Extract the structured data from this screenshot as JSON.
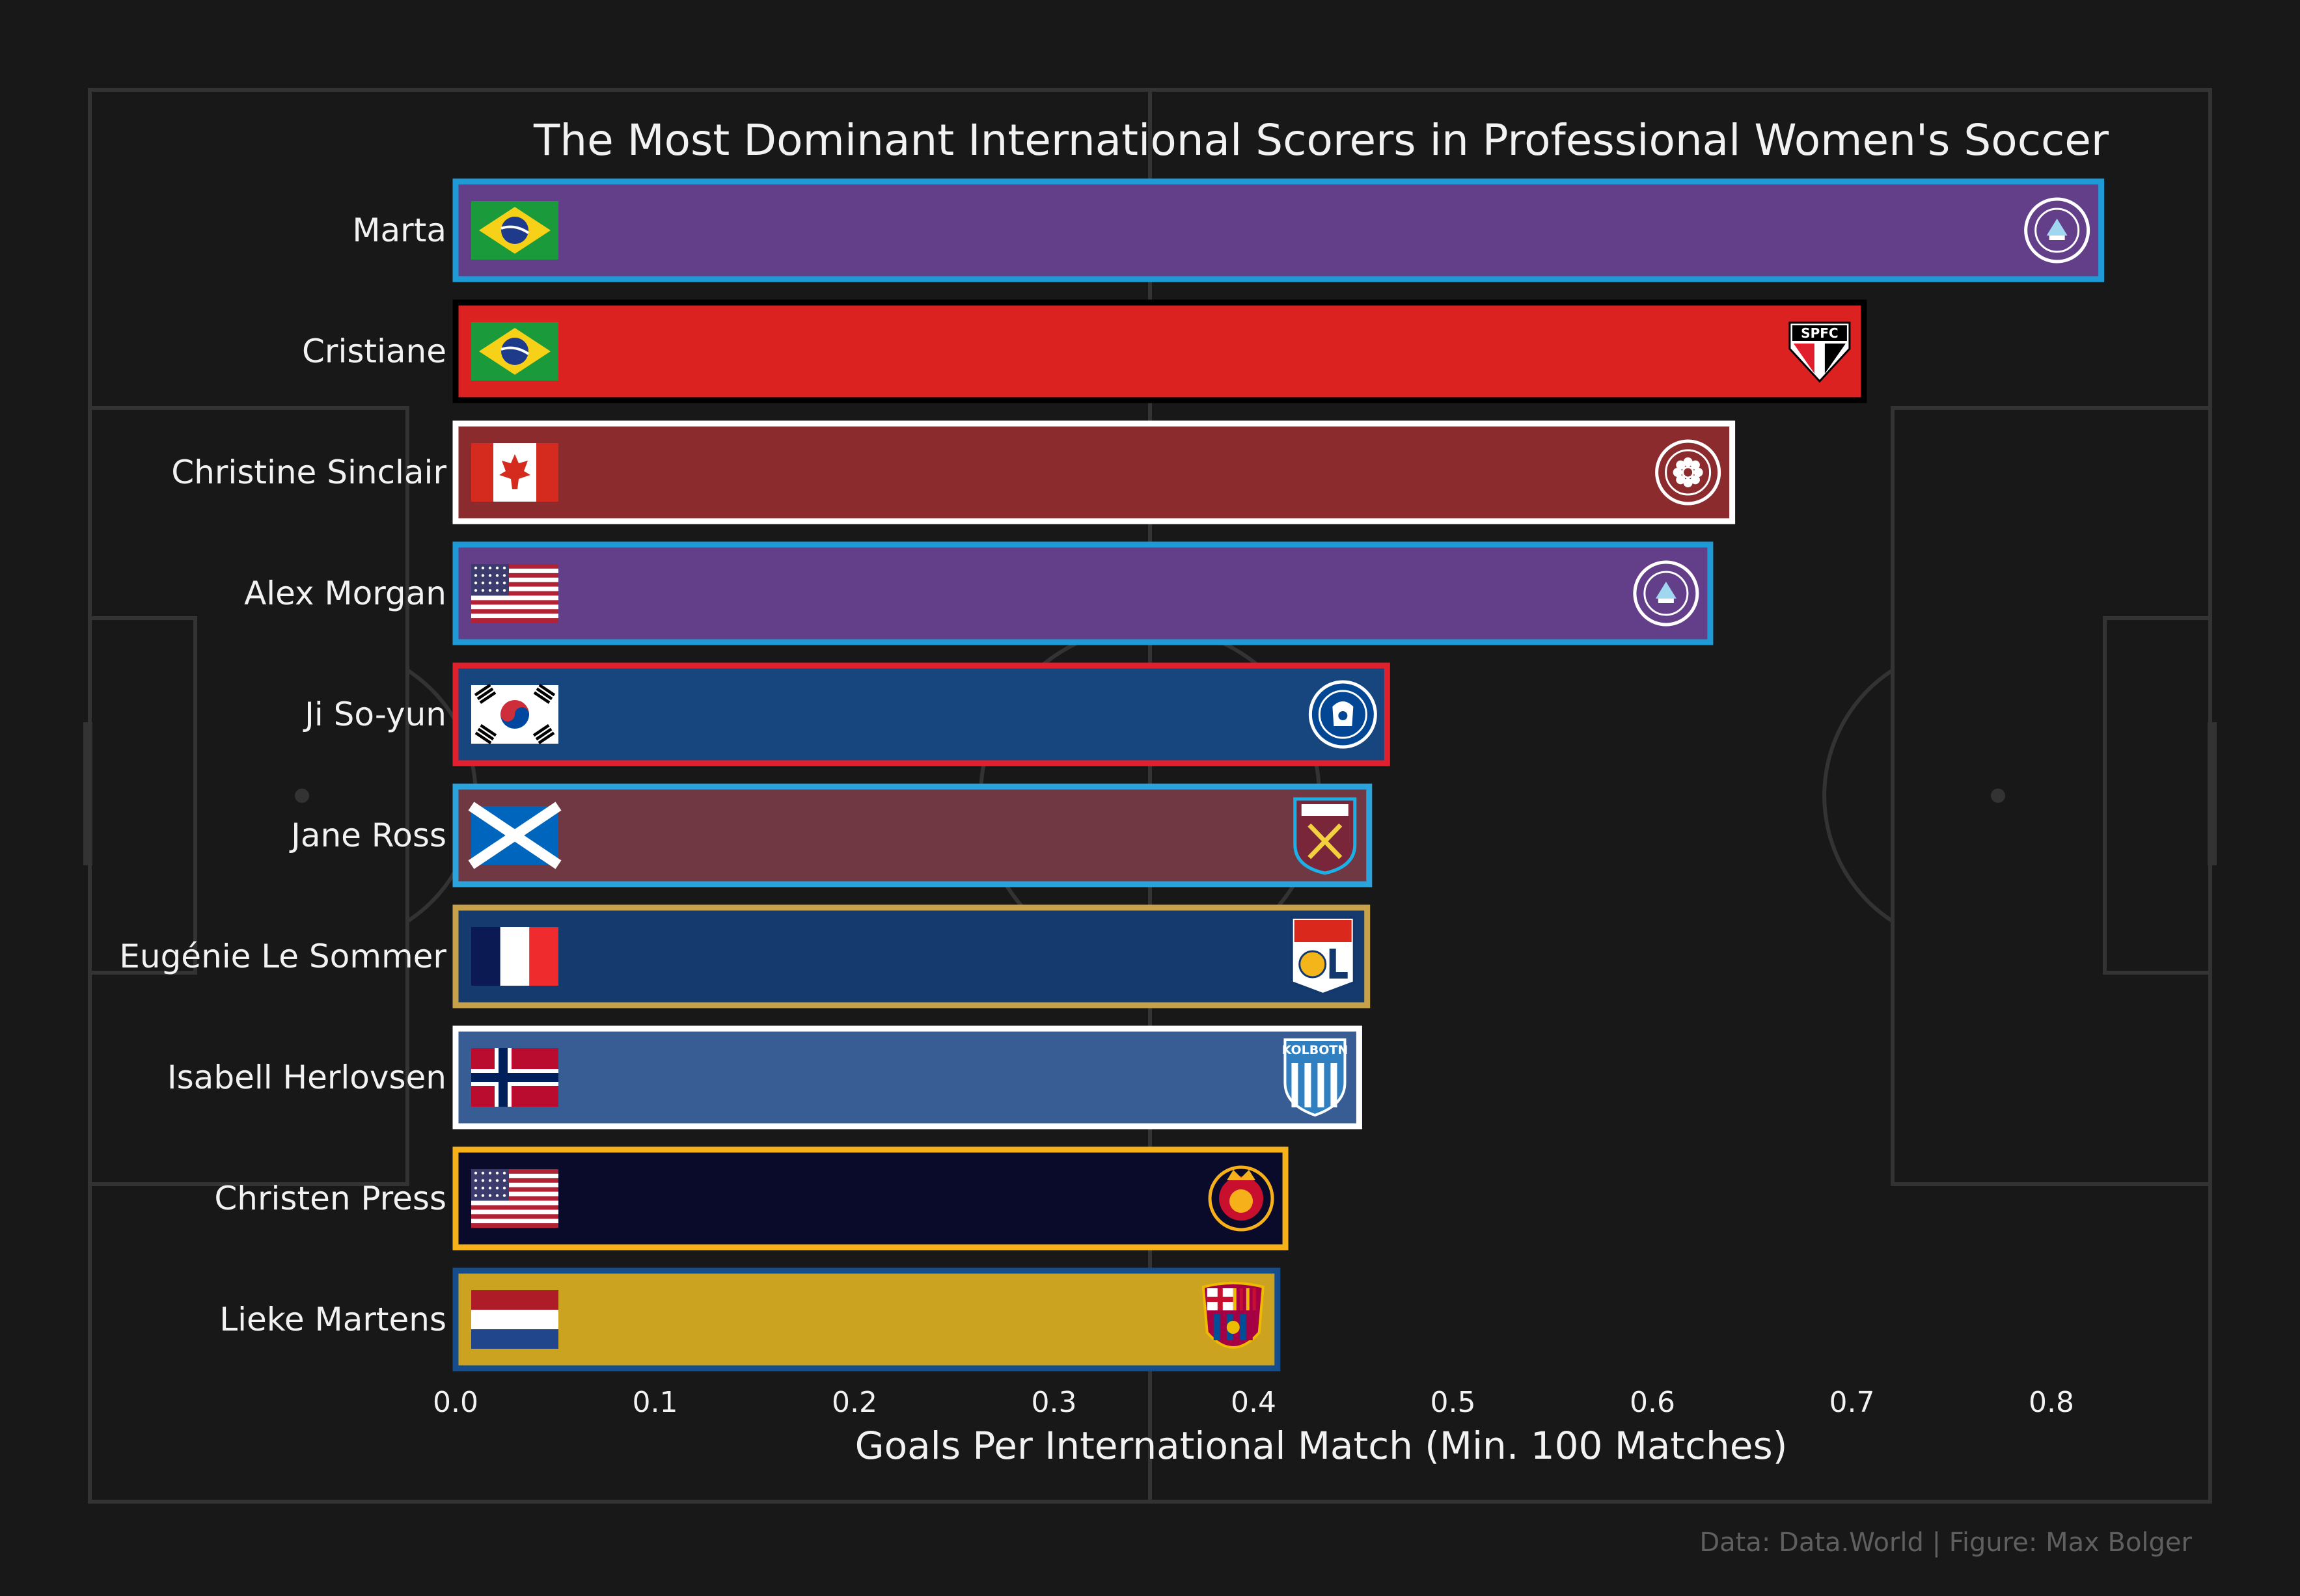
{
  "chart_data": {
    "type": "bar",
    "orientation": "horizontal",
    "title": "The Most Dominant International Scorers in Professional Women's Soccer",
    "xlabel": "Goals Per International Match (Min. 100 Matches)",
    "caption": "Data: Data.World | Figure: Max Bolger",
    "xlim": [
      0,
      0.84
    ],
    "ticks": [
      "0.0",
      "0.1",
      "0.2",
      "0.3",
      "0.4",
      "0.5",
      "0.6",
      "0.7",
      "0.8"
    ],
    "tick_values": [
      0,
      0.1,
      0.2,
      0.3,
      0.4,
      0.5,
      0.6,
      0.7,
      0.8
    ],
    "grid": false,
    "bars": [
      {
        "name": "Marta",
        "value": 0.825,
        "fill": "#633f8a",
        "border": "#1e9bd7",
        "flag": "brazil",
        "club": "orlando-pride-crest"
      },
      {
        "name": "Cristiane",
        "value": 0.706,
        "fill": "#dc2121",
        "border": "#000000",
        "flag": "brazil",
        "club": "sao-paulo-fc-crest",
        "club_text": "SPFC"
      },
      {
        "name": "Christine Sinclair",
        "value": 0.64,
        "fill": "#8b2b2e",
        "border": "#ffffff",
        "flag": "canada",
        "club": "portland-thorns-crest"
      },
      {
        "name": "Alex Morgan",
        "value": 0.629,
        "fill": "#633f8a",
        "border": "#1e9bd7",
        "flag": "usa",
        "club": "orlando-pride-crest"
      },
      {
        "name": "Ji So-yun",
        "value": 0.467,
        "fill": "#17457d",
        "border": "#e0202c",
        "flag": "south-korea",
        "club": "chelsea-crest"
      },
      {
        "name": "Jane Ross",
        "value": 0.458,
        "fill": "#6f3843",
        "border": "#2ba4de",
        "flag": "scotland",
        "club": "west-ham-crest"
      },
      {
        "name": "Eugénie Le Sommer",
        "value": 0.457,
        "fill": "#143a6e",
        "border": "#c8a24a",
        "flag": "france",
        "club": "olympique-lyonnais-crest"
      },
      {
        "name": "Isabell Herlovsen",
        "value": 0.453,
        "fill": "#375d94",
        "border": "#ffffff",
        "flag": "norway",
        "club": "kolbotn-crest",
        "club_text": "KOLBOTN"
      },
      {
        "name": "Christen Press",
        "value": 0.416,
        "fill": "#0a0a2b",
        "border": "#f6b11a",
        "flag": "usa",
        "club": "utah-royals-crest"
      },
      {
        "name": "Lieke Martens",
        "value": 0.412,
        "fill": "#cca221",
        "border": "#154d8c",
        "flag": "netherlands",
        "club": "fc-barcelona-crest"
      }
    ]
  },
  "colors": {
    "background": "#181818",
    "pitch_lines": "#333333",
    "text": "#f2f2f2",
    "caption": "#5f5f5f"
  }
}
